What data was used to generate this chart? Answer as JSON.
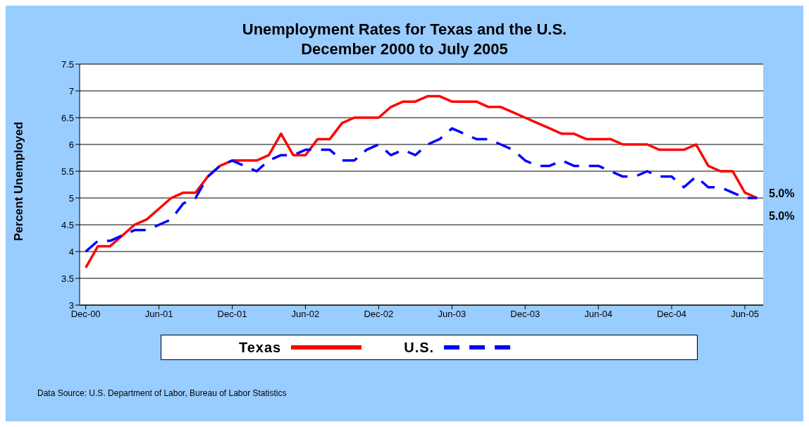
{
  "chart_data": {
    "type": "line",
    "title": "Unemployment Rates for Texas and the U.S.",
    "subtitle": "December 2000 to July 2005",
    "ylabel": "Percent Unemployed",
    "categories": [
      "Dec-00",
      null,
      null,
      null,
      null,
      null,
      "Jun-01",
      null,
      null,
      null,
      null,
      null,
      "Dec-01",
      null,
      null,
      null,
      null,
      null,
      "Jun-02",
      null,
      null,
      null,
      null,
      null,
      "Dec-02",
      null,
      null,
      null,
      null,
      null,
      "Jun-03",
      null,
      null,
      null,
      null,
      null,
      "Dec-03",
      null,
      null,
      null,
      null,
      null,
      "Jun-04",
      null,
      null,
      null,
      null,
      null,
      "Dec-04",
      null,
      null,
      null,
      null,
      null,
      "Jun-05",
      null
    ],
    "series": [
      {
        "name": "Texas",
        "color": "#ff0000",
        "line_style": "solid",
        "values": [
          3.7,
          4.1,
          4.1,
          4.3,
          4.5,
          4.6,
          4.8,
          5.0,
          5.1,
          5.1,
          5.4,
          5.6,
          5.7,
          5.7,
          5.7,
          5.8,
          6.2,
          5.8,
          5.8,
          6.1,
          6.1,
          6.4,
          6.5,
          6.5,
          6.5,
          6.7,
          6.8,
          6.8,
          6.9,
          6.9,
          6.8,
          6.8,
          6.8,
          6.7,
          6.7,
          6.6,
          6.5,
          6.4,
          6.3,
          6.2,
          6.2,
          6.1,
          6.1,
          6.1,
          6.0,
          6.0,
          6.0,
          5.9,
          5.9,
          5.9,
          6.0,
          5.6,
          5.5,
          5.5,
          5.1,
          5.0
        ]
      },
      {
        "name": "U.S.",
        "color": "#0000ff",
        "line_style": "dashed",
        "values": [
          4.0,
          4.2,
          4.2,
          4.3,
          4.4,
          4.4,
          4.5,
          4.6,
          4.9,
          5.0,
          5.4,
          5.6,
          5.7,
          5.6,
          5.5,
          5.7,
          5.8,
          5.8,
          5.9,
          5.9,
          5.9,
          5.7,
          5.7,
          5.9,
          6.0,
          5.8,
          5.9,
          5.8,
          6.0,
          6.1,
          6.3,
          6.2,
          6.1,
          6.1,
          6.0,
          5.9,
          5.7,
          5.6,
          5.6,
          5.7,
          5.6,
          5.6,
          5.6,
          5.5,
          5.4,
          5.4,
          5.5,
          5.4,
          5.4,
          5.2,
          5.4,
          5.2,
          5.2,
          5.1,
          5.0,
          5.0
        ]
      }
    ],
    "ylim": [
      3,
      7.5
    ],
    "yticks": [
      3,
      3.5,
      4,
      4.5,
      5,
      5.5,
      6,
      6.5,
      7,
      7.5
    ],
    "grid": "y",
    "legend": "bottom",
    "marker": "none",
    "annotations": [
      "5.0%",
      "5.0%",
      "Data Source:  U.S. Department of Labor, Bureau of Labor Statistics"
    ]
  }
}
